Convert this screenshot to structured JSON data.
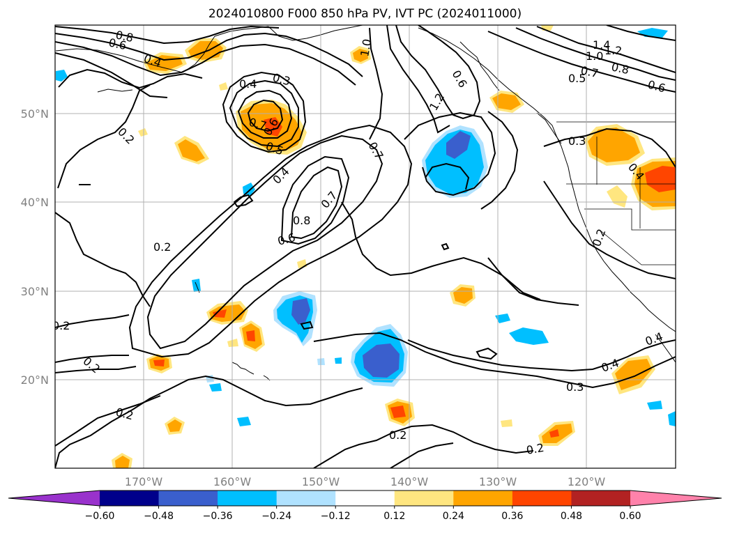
{
  "title": "2024010800 F000 850 hPa PV, IVT PC (2024011000)",
  "chart_data": {
    "type": "map",
    "projection": "PlateCarree",
    "lon_range": [
      -180,
      -110
    ],
    "lat_range": [
      10,
      60
    ],
    "gridlines": true,
    "lat_ticks": [
      {
        "value": 50,
        "label": "50°N"
      },
      {
        "value": 40,
        "label": "40°N"
      },
      {
        "value": 30,
        "label": "30°N"
      },
      {
        "value": 20,
        "label": "20°N"
      }
    ],
    "lon_ticks": [
      {
        "value": -170,
        "label": "170°W"
      },
      {
        "value": -160,
        "label": "160°W"
      },
      {
        "value": -150,
        "label": "150°W"
      },
      {
        "value": -140,
        "label": "140°W"
      },
      {
        "value": -130,
        "label": "130°W"
      },
      {
        "value": -120,
        "label": "120°W"
      }
    ],
    "colorbar": {
      "bounds": [
        -0.6,
        -0.48,
        -0.36,
        -0.24,
        -0.12,
        0.12,
        0.24,
        0.36,
        0.48,
        0.6
      ],
      "tick_labels": [
        "−0.60",
        "−0.48",
        "−0.36",
        "−0.24",
        "−0.12",
        "0.12",
        "0.24",
        "0.36",
        "0.48",
        "0.60"
      ],
      "colors": [
        "#9932cc",
        "#00008b",
        "#3a5fcd",
        "#00bfff",
        "#b0e2ff",
        "#ffffff",
        "#ffe680",
        "#ffa500",
        "#ff4500",
        "#b22222",
        "#ff82ab"
      ],
      "extend": "both"
    },
    "shaded_regions": [
      {
        "lon": -151.5,
        "lat": 28.5,
        "value": -0.4
      },
      {
        "lon": -143.5,
        "lat": 22.0,
        "value": -0.45
      },
      {
        "lon": -135.0,
        "lat": 44.5,
        "value": -0.35
      },
      {
        "lon": -157.0,
        "lat": 50.0,
        "value": 0.4
      },
      {
        "lon": -161.5,
        "lat": 27.5,
        "value": 0.38
      },
      {
        "lon": -158.0,
        "lat": 25.0,
        "value": 0.4
      },
      {
        "lon": -141.5,
        "lat": 16.5,
        "value": 0.38
      },
      {
        "lon": -168.0,
        "lat": 22.0,
        "value": 0.38
      },
      {
        "lon": -114.0,
        "lat": 42.0,
        "value": 0.4
      },
      {
        "lon": -116.0,
        "lat": 21.0,
        "value": 0.28
      },
      {
        "lon": -118.5,
        "lat": 46.5,
        "value": 0.28
      },
      {
        "lon": -124.0,
        "lat": 13.0,
        "value": 0.35
      }
    ],
    "contour_labels": [
      "0.8",
      "0.6",
      "0.4",
      "0.3",
      "0.4",
      "0.7",
      "0.6",
      "0.5",
      "0.2",
      "0.4",
      "0.7",
      "0.8",
      "0.6",
      "0.2",
      "0.2",
      "0.2",
      "0.2",
      "1.0",
      "0.6",
      "1.2",
      "0.7",
      "1.4",
      "1.2",
      "1.0",
      "0.7",
      "0.8",
      "0.5",
      "0.6",
      "0.3",
      "0.4",
      "0.2",
      "0.4",
      "0.3",
      "0.4",
      "0.2",
      "0.2"
    ]
  }
}
